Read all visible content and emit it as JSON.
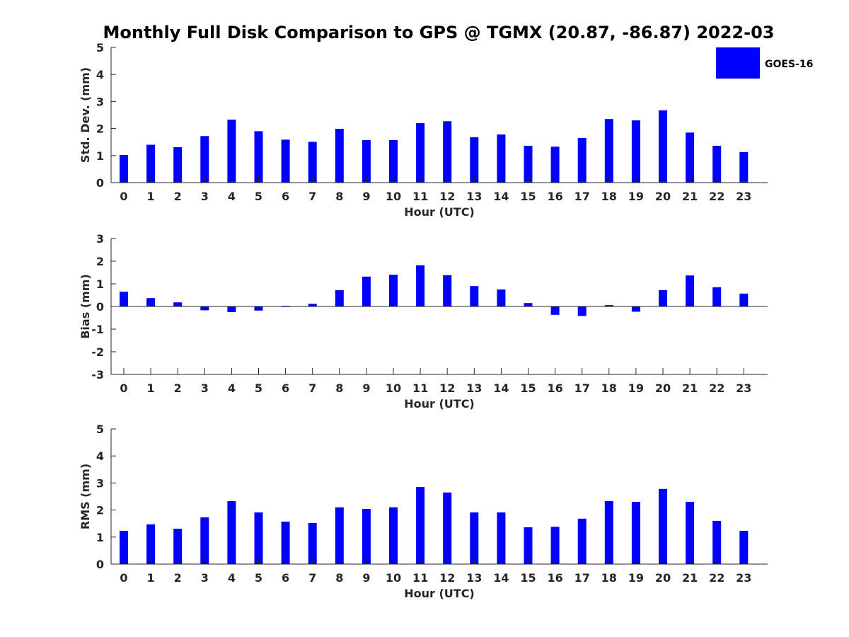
{
  "chart_data": [
    {
      "type": "bar",
      "title": "Monthly Full Disk Comparison to GPS @ TGMX (20.87, -86.87) 2022-03",
      "xlabel": "Hour (UTC)",
      "ylabel": "Std. Dev. (mm)",
      "ylim": [
        0,
        5
      ],
      "yticks": [
        "0",
        "1",
        "2",
        "3",
        "4",
        "5"
      ],
      "categories": [
        "0",
        "1",
        "2",
        "3",
        "4",
        "5",
        "6",
        "7",
        "8",
        "9",
        "10",
        "11",
        "12",
        "13",
        "14",
        "15",
        "16",
        "17",
        "18",
        "19",
        "20",
        "21",
        "22",
        "23"
      ],
      "series": [
        {
          "name": "GOES-16",
          "color": "#0000ff",
          "values": [
            1.02,
            1.4,
            1.31,
            1.72,
            2.33,
            1.9,
            1.59,
            1.51,
            1.99,
            1.57,
            1.57,
            2.2,
            2.27,
            1.68,
            1.78,
            1.36,
            1.33,
            1.65,
            2.35,
            2.3,
            2.67,
            1.85,
            1.36,
            1.13
          ]
        }
      ],
      "legend": {
        "label": "GOES-16",
        "placement": "top-right"
      }
    },
    {
      "type": "bar",
      "title": "",
      "xlabel": "Hour (UTC)",
      "ylabel": "Bias (mm)",
      "ylim": [
        -3,
        3
      ],
      "yticks": [
        "-3",
        "-2",
        "-1",
        "0",
        "1",
        "2",
        "3"
      ],
      "categories": [
        "0",
        "1",
        "2",
        "3",
        "4",
        "5",
        "6",
        "7",
        "8",
        "9",
        "10",
        "11",
        "12",
        "13",
        "14",
        "15",
        "16",
        "17",
        "18",
        "19",
        "20",
        "21",
        "22",
        "23"
      ],
      "series": [
        {
          "name": "GOES-16",
          "color": "#0000ff",
          "values": [
            0.65,
            0.37,
            0.18,
            -0.17,
            -0.25,
            -0.18,
            0.03,
            0.12,
            0.72,
            1.32,
            1.4,
            1.82,
            1.38,
            0.9,
            0.75,
            0.15,
            -0.37,
            -0.42,
            0.06,
            -0.23,
            0.72,
            1.37,
            0.85,
            0.57
          ]
        }
      ]
    },
    {
      "type": "bar",
      "title": "",
      "xlabel": "Hour (UTC)",
      "ylabel": "RMS (mm)",
      "ylim": [
        0,
        5
      ],
      "yticks": [
        "0",
        "1",
        "2",
        "3",
        "4",
        "5"
      ],
      "categories": [
        "0",
        "1",
        "2",
        "3",
        "4",
        "5",
        "6",
        "7",
        "8",
        "9",
        "10",
        "11",
        "12",
        "13",
        "14",
        "15",
        "16",
        "17",
        "18",
        "19",
        "20",
        "21",
        "22",
        "23"
      ],
      "series": [
        {
          "name": "GOES-16",
          "color": "#0000ff",
          "values": [
            1.23,
            1.47,
            1.31,
            1.73,
            2.33,
            1.91,
            1.57,
            1.52,
            2.1,
            2.04,
            2.1,
            2.85,
            2.65,
            1.91,
            1.91,
            1.36,
            1.38,
            1.68,
            2.33,
            2.3,
            2.78,
            2.3,
            1.6,
            1.23
          ]
        }
      ]
    }
  ]
}
